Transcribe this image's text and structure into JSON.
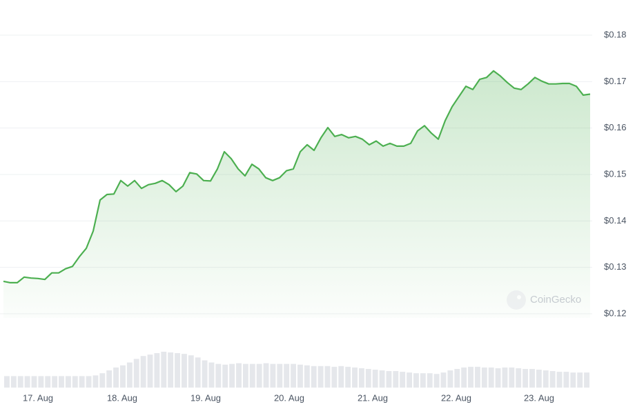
{
  "chart_data": {
    "type": "line",
    "values": [
      0.127,
      0.1267,
      0.1267,
      0.1279,
      0.1277,
      0.1276,
      0.1274,
      0.1288,
      0.1288,
      0.1297,
      0.1302,
      0.1323,
      0.1341,
      0.1378,
      0.1445,
      0.1457,
      0.1458,
      0.1487,
      0.1475,
      0.1487,
      0.147,
      0.1478,
      0.1481,
      0.1487,
      0.1478,
      0.1463,
      0.1475,
      0.1504,
      0.1501,
      0.1487,
      0.1486,
      0.1512,
      0.1549,
      0.1534,
      0.1512,
      0.1497,
      0.1522,
      0.1512,
      0.1493,
      0.1487,
      0.1493,
      0.1508,
      0.1512,
      0.1549,
      0.1564,
      0.1552,
      0.1579,
      0.1601,
      0.1582,
      0.1586,
      0.1579,
      0.1582,
      0.1576,
      0.1564,
      0.1572,
      0.1561,
      0.1567,
      0.1561,
      0.1561,
      0.1567,
      0.1594,
      0.1605,
      0.1589,
      0.1576,
      0.1616,
      0.1646,
      0.1668,
      0.169,
      0.1683,
      0.1705,
      0.1709,
      0.1723,
      0.1712,
      0.1698,
      0.1686,
      0.1683,
      0.1695,
      0.1709,
      0.1701,
      0.1695,
      0.1695,
      0.1696,
      0.1696,
      0.169,
      0.1671,
      0.1673
    ],
    "color": "#4caf50",
    "volume_values": [
      16,
      16,
      16,
      16,
      16,
      16,
      16,
      16,
      16,
      16,
      16,
      16,
      16,
      17,
      20,
      24,
      28,
      31,
      35,
      40,
      44,
      46,
      48,
      50,
      49,
      48,
      47,
      45,
      42,
      38,
      35,
      33,
      32,
      33,
      34,
      33,
      33,
      33,
      34,
      33,
      33,
      33,
      33,
      32,
      31,
      30,
      30,
      30,
      29,
      30,
      29,
      28,
      27,
      26,
      25,
      24,
      23,
      23,
      22,
      21,
      20,
      20,
      20,
      19,
      21,
      24,
      26,
      28,
      29,
      29,
      28,
      28,
      27,
      28,
      28,
      27,
      26,
      26,
      25,
      24,
      23,
      22,
      22,
      21,
      21,
      21
    ],
    "volume_color": "#e5e7eb",
    "xlim": [
      0,
      85
    ],
    "xticks": [
      {
        "value": 5,
        "label": "17. Aug"
      },
      {
        "value": 17.2,
        "label": "18. Aug"
      },
      {
        "value": 29.3,
        "label": "19. Aug"
      },
      {
        "value": 41.4,
        "label": "20. Aug"
      },
      {
        "value": 53.5,
        "label": "21. Aug"
      },
      {
        "value": 65.6,
        "label": "22. Aug"
      },
      {
        "value": 77.6,
        "label": "23. Aug"
      }
    ],
    "ylim": [
      0.12,
      0.18
    ],
    "yticks": [
      {
        "value": 0.12,
        "label": "$0.12"
      },
      {
        "value": 0.13,
        "label": "$0.13"
      },
      {
        "value": 0.14,
        "label": "$0.14"
      },
      {
        "value": 0.15,
        "label": "$0.15"
      },
      {
        "value": 0.16,
        "label": "$0.16"
      },
      {
        "value": 0.17,
        "label": "$0.17"
      },
      {
        "value": 0.18,
        "label": "$0.18"
      }
    ],
    "grid": true,
    "watermark": "CoinGecko"
  }
}
